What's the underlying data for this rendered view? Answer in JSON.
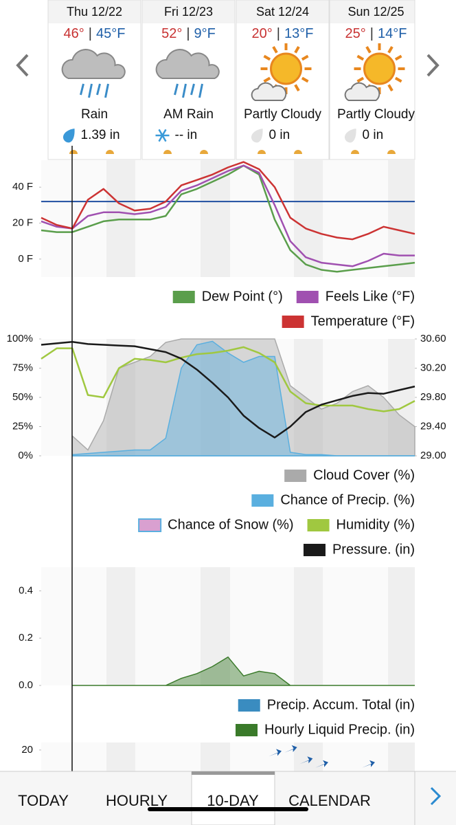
{
  "separator": "|",
  "days": [
    {
      "date": "Thu 12/22",
      "high": "46°",
      "low": "45°F",
      "condition": "Rain",
      "precip": "1.39 in"
    },
    {
      "date": "Fri 12/23",
      "high": "52°",
      "low": "9°F",
      "condition": "AM Rain",
      "precip": "-- in"
    },
    {
      "date": "Sat 12/24",
      "high": "20°",
      "low": "13°F",
      "condition": "Partly Cloudy",
      "precip": "0 in"
    },
    {
      "date": "Sun 12/25",
      "high": "25°",
      "low": "14°F",
      "condition": "Partly Cloudy",
      "precip": "0 in"
    }
  ],
  "chart_data": [
    {
      "type": "line",
      "ylim": [
        -10,
        55
      ],
      "yticks": [
        {
          "value": 40,
          "label": "40 F"
        },
        {
          "value": 20,
          "label": "20 F"
        },
        {
          "value": 0,
          "label": "0 F"
        }
      ],
      "reference_line": {
        "value": 32,
        "color": "#1f4ea0"
      },
      "series": [
        {
          "name": "Dew Point (°)",
          "color": "#5a9e4b",
          "style": "line",
          "values": [
            16,
            15,
            15,
            18,
            21,
            22,
            22,
            22,
            24,
            36,
            39,
            43,
            47,
            52,
            47,
            22,
            5,
            -3,
            -6,
            -7,
            -6,
            -5,
            -4,
            -3,
            -2
          ]
        },
        {
          "name": "Feels Like (°F)",
          "color": "#a050b0",
          "style": "line",
          "values": [
            21,
            18,
            17,
            24,
            26,
            26,
            25,
            26,
            29,
            38,
            41,
            45,
            49,
            52,
            48,
            30,
            10,
            1,
            -2,
            -3,
            -4,
            -1,
            3,
            2,
            2
          ]
        },
        {
          "name": "Temperature (°F)",
          "color": "#cc3333",
          "style": "line",
          "values": [
            23,
            19,
            17,
            33,
            39,
            31,
            27,
            28,
            32,
            41,
            44,
            47,
            51,
            54,
            50,
            40,
            23,
            17,
            14,
            12,
            11,
            14,
            18,
            16,
            14
          ]
        }
      ]
    },
    {
      "type": "line",
      "ylim": [
        0,
        100
      ],
      "yticks": [
        {
          "value": 100,
          "label": "100%"
        },
        {
          "value": 75,
          "label": "75%"
        },
        {
          "value": 50,
          "label": "50%"
        },
        {
          "value": 25,
          "label": "25%"
        },
        {
          "value": 0,
          "label": "0%"
        }
      ],
      "y2lim": [
        29.0,
        30.6
      ],
      "y2ticks": [
        {
          "value": 30.6,
          "label": "30.60"
        },
        {
          "value": 30.2,
          "label": "30.20"
        },
        {
          "value": 29.8,
          "label": "29.80"
        },
        {
          "value": 29.4,
          "label": "29.40"
        },
        {
          "value": 29.0,
          "label": "29.00"
        }
      ],
      "series": [
        {
          "name": "Cloud Cover (%)",
          "color": "#aaaaaa",
          "style": "area",
          "values": [
            null,
            null,
            17,
            5,
            30,
            75,
            80,
            85,
            97,
            100,
            100,
            100,
            100,
            100,
            100,
            100,
            60,
            50,
            40,
            45,
            55,
            60,
            50,
            35,
            25
          ]
        },
        {
          "name": "Chance of Precip. (%)",
          "color": "#5aafdf",
          "style": "area",
          "values": [
            null,
            null,
            1,
            2,
            3,
            4,
            5,
            5,
            15,
            75,
            95,
            98,
            88,
            80,
            85,
            85,
            3,
            1,
            1,
            0,
            0,
            0,
            0,
            0,
            0
          ]
        },
        {
          "name": "Chance of Snow (%)",
          "color": "#d9a0d0",
          "edge_color": "#5aafdf",
          "style": "area",
          "values": [
            null,
            null,
            0,
            0,
            0,
            0,
            0,
            0,
            0,
            0,
            0,
            0,
            0,
            0,
            0,
            0,
            0,
            0,
            0,
            0,
            0,
            0,
            0,
            0,
            0
          ]
        },
        {
          "name": "Humidity (%)",
          "color": "#a0c840",
          "style": "line",
          "values": [
            83,
            92,
            92,
            52,
            50,
            75,
            83,
            82,
            80,
            84,
            87,
            88,
            90,
            93,
            88,
            80,
            55,
            45,
            43,
            43,
            43,
            40,
            38,
            40,
            47
          ]
        },
        {
          "name": "Pressure. (in)",
          "color": "#1a1a1a",
          "style": "line",
          "axis": "y2",
          "values": [
            30.52,
            30.54,
            30.56,
            30.53,
            30.52,
            30.51,
            30.5,
            30.46,
            30.42,
            30.33,
            30.18,
            30.0,
            29.8,
            29.55,
            29.38,
            29.25,
            29.4,
            29.6,
            29.7,
            29.76,
            29.82,
            29.86,
            29.85,
            29.9,
            29.95
          ]
        }
      ]
    },
    {
      "type": "line",
      "ylim": [
        0,
        0.5
      ],
      "yticks": [
        0.4,
        0.2,
        {
          "value": 0,
          "label": "0.0"
        }
      ],
      "series": [
        {
          "name": "Precip. Accum. Total (in)",
          "color": "#3a8cc0",
          "style": "line",
          "values": [
            null,
            null,
            null,
            null,
            null,
            null,
            null,
            null,
            null,
            null,
            null,
            null,
            null,
            null,
            null,
            null,
            null,
            null,
            null,
            null,
            null,
            null,
            null,
            null,
            null
          ]
        },
        {
          "name": "Hourly Liquid Precip. (in)",
          "color": "#3a7a2a",
          "style": "area",
          "values": [
            null,
            null,
            0,
            0,
            0,
            0,
            0,
            0,
            0,
            0.03,
            0.05,
            0.08,
            0.12,
            0.04,
            0.06,
            0.05,
            0,
            0,
            0,
            0,
            0,
            0,
            0,
            0,
            0
          ]
        }
      ]
    },
    {
      "type": "line",
      "ylim": [
        0,
        22
      ],
      "yticks": [
        20
      ],
      "series": [
        {
          "color": "#1f5fa8",
          "style": "arrow",
          "values": [
            null,
            null,
            null,
            null,
            null,
            null,
            null,
            null,
            null,
            null,
            null,
            null,
            null,
            null,
            null,
            19,
            20,
            17,
            16,
            null,
            null,
            16,
            null,
            null,
            null
          ]
        }
      ]
    }
  ],
  "tabs": [
    "TODAY",
    "HOURLY",
    "10-DAY",
    "CALENDAR"
  ]
}
